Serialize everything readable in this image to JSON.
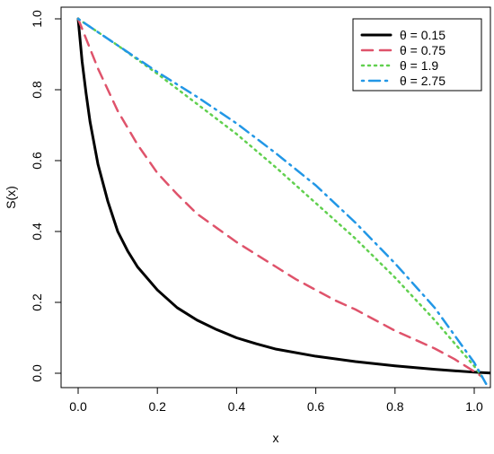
{
  "chart_data": {
    "type": "line",
    "title": "",
    "xlabel": "x",
    "ylabel": "S(x)",
    "xlim": [
      0.0,
      1.05
    ],
    "ylim": [
      0.0,
      1.0
    ],
    "x_ticks": [
      0.0,
      0.2,
      0.4,
      0.6,
      0.8,
      1.0
    ],
    "x_tick_labels": [
      "0.0",
      "0.2",
      "0.4",
      "0.6",
      "0.8",
      "1.0"
    ],
    "y_ticks": [
      0.0,
      0.2,
      0.4,
      0.6,
      0.8,
      1.0
    ],
    "y_tick_labels": [
      "0.0",
      "0.2",
      "0.4",
      "0.6",
      "0.8",
      "1.0"
    ],
    "grid": false,
    "legend_position": "top-right",
    "legend_entries": [
      {
        "label": "θ = 0.15",
        "color": "#000000",
        "style": "solid"
      },
      {
        "label": "θ = 0.75",
        "color": "#DF536B",
        "style": "dashed"
      },
      {
        "label": "θ = 1.9",
        "color": "#61D04F",
        "style": "dotted"
      },
      {
        "label": "θ = 2.75",
        "color": "#2297E6",
        "style": "dotdash"
      }
    ],
    "series": [
      {
        "name": "θ = 0.15",
        "color": "#000000",
        "style": "solid",
        "x": [
          0.0,
          0.01,
          0.02,
          0.03,
          0.04,
          0.05,
          0.075,
          0.1,
          0.125,
          0.15,
          0.2,
          0.25,
          0.3,
          0.35,
          0.4,
          0.45,
          0.5,
          0.6,
          0.7,
          0.8,
          0.9,
          1.0,
          1.05
        ],
        "y": [
          1.0,
          0.88,
          0.79,
          0.71,
          0.65,
          0.59,
          0.485,
          0.4,
          0.345,
          0.3,
          0.235,
          0.185,
          0.15,
          0.123,
          0.1,
          0.083,
          0.068,
          0.048,
          0.033,
          0.021,
          0.011,
          0.003,
          0.0
        ]
      },
      {
        "name": "θ = 0.75",
        "color": "#DF536B",
        "style": "dashed",
        "x": [
          0.0,
          0.05,
          0.1,
          0.15,
          0.2,
          0.25,
          0.3,
          0.35,
          0.4,
          0.45,
          0.5,
          0.55,
          0.6,
          0.65,
          0.7,
          0.75,
          0.8,
          0.85,
          0.9,
          0.95,
          1.0,
          1.02
        ],
        "y": [
          1.0,
          0.86,
          0.74,
          0.645,
          0.565,
          0.505,
          0.45,
          0.41,
          0.37,
          0.335,
          0.3,
          0.265,
          0.235,
          0.205,
          0.18,
          0.15,
          0.12,
          0.095,
          0.07,
          0.04,
          0.005,
          -0.01
        ]
      },
      {
        "name": "θ = 1.9",
        "color": "#61D04F",
        "style": "dotted",
        "x": [
          0.0,
          0.1,
          0.2,
          0.3,
          0.4,
          0.5,
          0.6,
          0.7,
          0.8,
          0.9,
          1.0,
          1.02
        ],
        "y": [
          1.0,
          0.925,
          0.845,
          0.76,
          0.675,
          0.58,
          0.48,
          0.38,
          0.27,
          0.15,
          0.02,
          -0.01
        ]
      },
      {
        "name": "θ = 2.75",
        "color": "#2297E6",
        "style": "dotdash",
        "x": [
          0.0,
          0.1,
          0.2,
          0.3,
          0.4,
          0.5,
          0.6,
          0.7,
          0.8,
          0.9,
          1.0,
          1.03
        ],
        "y": [
          1.0,
          0.925,
          0.85,
          0.78,
          0.705,
          0.62,
          0.53,
          0.425,
          0.31,
          0.185,
          0.03,
          -0.03
        ]
      }
    ]
  }
}
